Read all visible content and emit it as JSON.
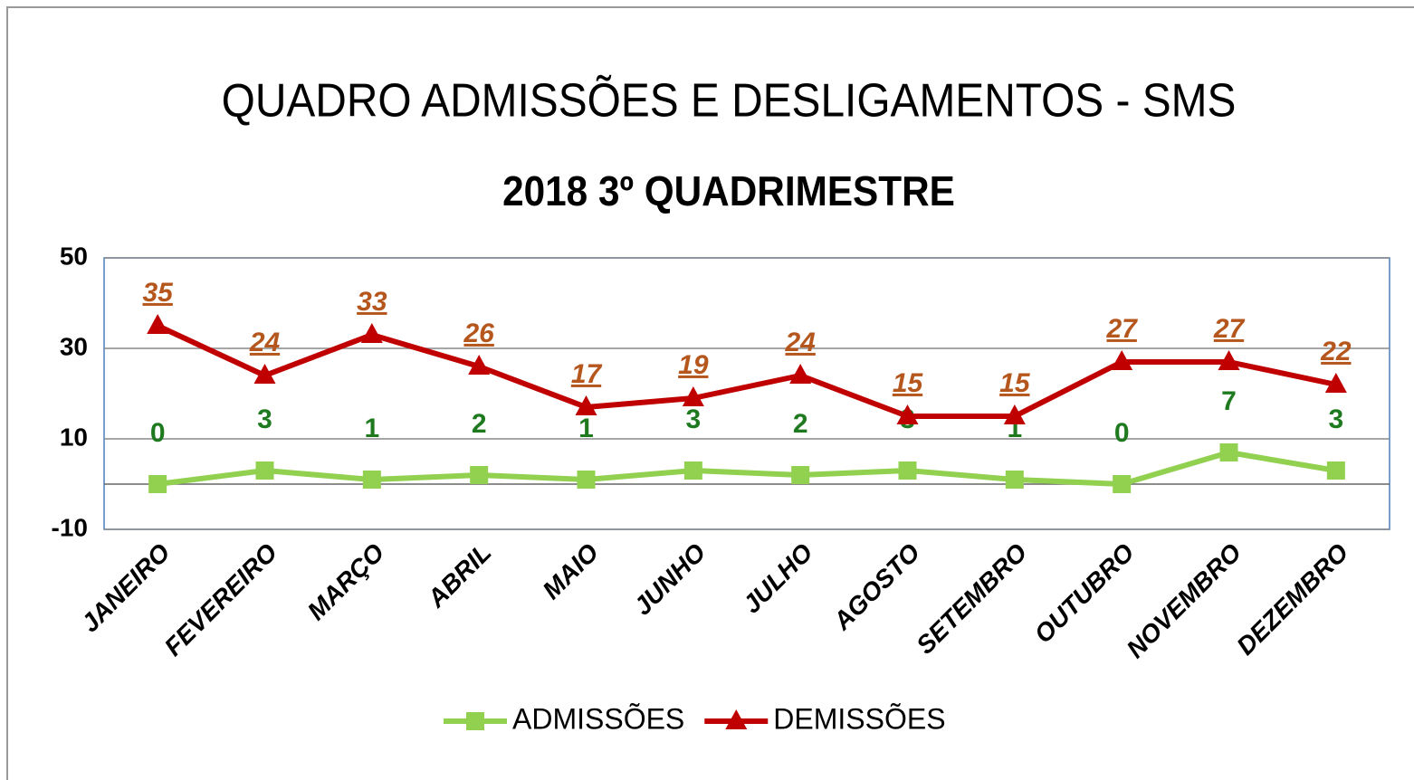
{
  "chart_data": {
    "type": "line",
    "title": "QUADRO ADMISSÕES E DESLIGAMENTOS - SMS",
    "subtitle": "2018 3º QUADRIMESTRE",
    "categories": [
      "JANEIRO",
      "FEVEREIRO",
      "MARÇO",
      "ABRIL",
      "MAIO",
      "JUNHO",
      "JULHO",
      "AGOSTO",
      "SETEMBRO",
      "OUTUBRO",
      "NOVEMBRO",
      "DEZEMBRO"
    ],
    "series": [
      {
        "name": "ADMISSÕES",
        "color": "#92d050",
        "label_color": "#1f7a1f",
        "marker": "square",
        "values": [
          0,
          3,
          1,
          2,
          1,
          3,
          2,
          3,
          1,
          0,
          7,
          3
        ]
      },
      {
        "name": "DEMISSÕES",
        "color": "#c00000",
        "label_color": "#b5561d",
        "marker": "triangle",
        "values": [
          35,
          24,
          33,
          26,
          17,
          19,
          24,
          15,
          15,
          27,
          27,
          22
        ]
      }
    ],
    "ylim": [
      -10,
      50
    ],
    "yticks": [
      -10,
      10,
      30,
      50
    ],
    "grid": true,
    "legend": "bottom"
  }
}
